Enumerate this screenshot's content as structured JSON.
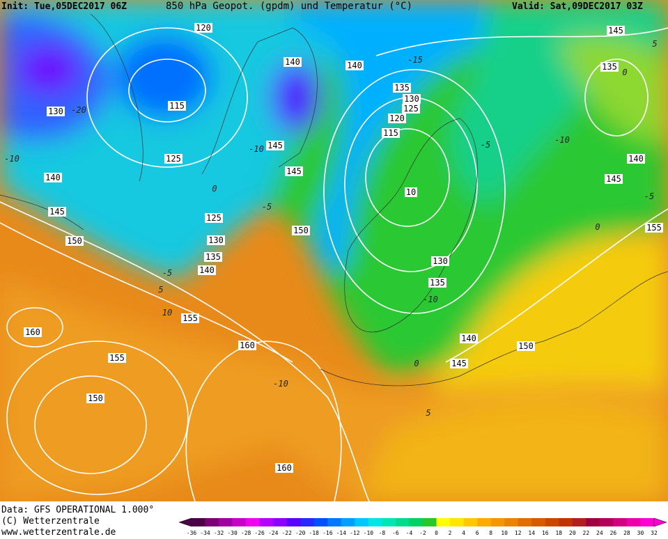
{
  "header": {
    "init": "Init: Tue,05DEC2017 06Z",
    "title": "850 hPa Geopot. (gpdm) und Temperatur (°C)",
    "valid": "Valid: Sat,09DEC2017 03Z"
  },
  "footer": {
    "data": "Data: GFS OPERATIONAL 1.000°",
    "copyright": "(C) Wetterzentrale",
    "url": "www.wetterzentrale.de"
  },
  "geopotential_labels": [
    "120",
    "140",
    "140",
    "130",
    "115",
    "135",
    "130",
    "125",
    "120",
    "115",
    "145",
    "125",
    "145",
    "140",
    "10",
    "145",
    "125",
    "150",
    "150",
    "130",
    "135",
    "140",
    "130",
    "135",
    "155",
    "160",
    "140",
    "150",
    "160",
    "145",
    "155",
    "150",
    "160",
    "145",
    "135",
    "140",
    "145",
    "155"
  ],
  "temperature_labels": [
    "-20",
    "-10",
    "-5",
    "5",
    "10",
    "0",
    "-5",
    "-10",
    "-15",
    "-10",
    "-5",
    "-10",
    "0",
    "5",
    "-10",
    "5",
    "0",
    "0",
    "-5"
  ],
  "colorbar": {
    "ticks": [
      "-36",
      "-34",
      "-32",
      "-30",
      "-28",
      "-26",
      "-24",
      "-22",
      "-20",
      "-18",
      "-16",
      "-14",
      "-12",
      "-10",
      "-8",
      "-6",
      "-4",
      "-2",
      "0",
      "2",
      "4",
      "6",
      "8",
      "10",
      "12",
      "14",
      "16",
      "18",
      "20",
      "22",
      "24",
      "26",
      "28",
      "30",
      "32"
    ],
    "colors": [
      "#4b0046",
      "#7a0073",
      "#a000a0",
      "#c800c8",
      "#f000f0",
      "#b400ff",
      "#8c00ff",
      "#5a00ff",
      "#2828ff",
      "#0050ff",
      "#0078ff",
      "#00a0ff",
      "#00c8ff",
      "#00e6e6",
      "#00e6b4",
      "#00dc8c",
      "#00d264",
      "#28c828",
      "#ffff00",
      "#ffe600",
      "#ffc800",
      "#ffaa00",
      "#f59600",
      "#eb8200",
      "#e16e00",
      "#d75a00",
      "#cd4600",
      "#c33200",
      "#b41e1e",
      "#a0003c",
      "#b4005a",
      "#d20082",
      "#eb00aa",
      "#ff00d2"
    ]
  }
}
